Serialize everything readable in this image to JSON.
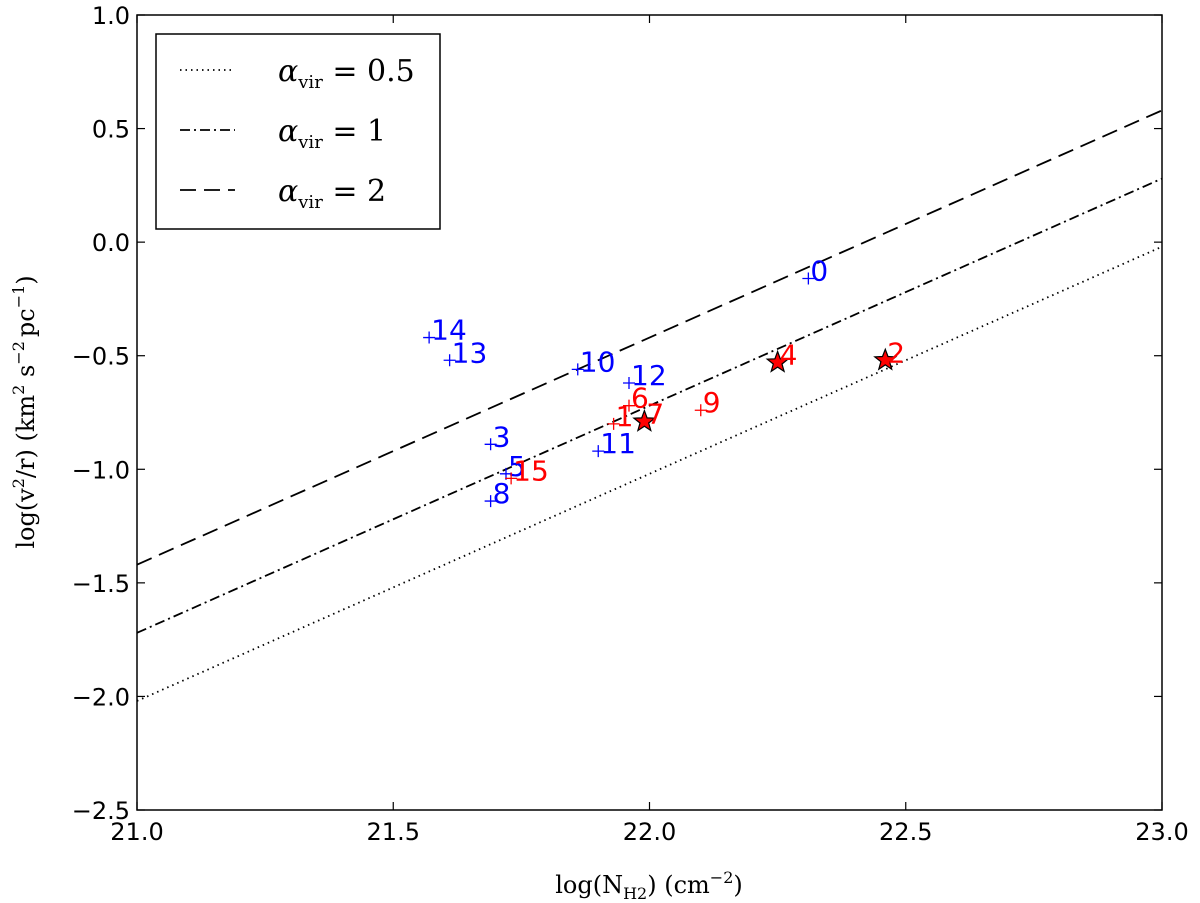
{
  "chart_data": {
    "type": "scatter",
    "xlabel": "log(N",
    "xlabel_sub": "H2",
    "xlabel_unit": ")  (cm",
    "xlabel_exp": "−2",
    "xlabel_end": ")",
    "ylabel": "log(v",
    "ylabel_sq": "2",
    "ylabel_mid": "/r)  (km",
    "ylabel_sq2": "2",
    "ylabel_s": " s",
    "ylabel_sexp": "−2",
    "ylabel_pc": "pc",
    "ylabel_pcexp": "−1",
    "ylabel_end": ")",
    "xlim": [
      21.0,
      23.0
    ],
    "ylim": [
      -2.5,
      1.0
    ],
    "xticks": [
      "21.0",
      "21.5",
      "22.0",
      "22.5",
      "23.0"
    ],
    "yticks": [
      "1.0",
      "0.5",
      "0.0",
      "−0.5",
      "−1.0",
      "−1.5",
      "−2.0",
      "−2.5"
    ],
    "lines": [
      {
        "name": "α_vir = 0.5",
        "legend_alpha": "α",
        "legend_sub": "vir",
        "legend_eq": " = 0.5",
        "style": "dotted",
        "x": [
          21.0,
          23.0
        ],
        "y": [
          -2.02,
          -0.02
        ]
      },
      {
        "name": "α_vir = 1",
        "legend_alpha": "α",
        "legend_sub": "vir",
        "legend_eq": " = 1",
        "style": "dashdot",
        "x": [
          21.0,
          23.0
        ],
        "y": [
          -1.72,
          0.28
        ]
      },
      {
        "name": "α_vir = 2",
        "legend_alpha": "α",
        "legend_sub": "vir",
        "legend_eq": " = 2",
        "style": "dashed",
        "x": [
          21.0,
          23.0
        ],
        "y": [
          -1.42,
          0.58
        ]
      }
    ],
    "points": [
      {
        "label": "0",
        "x": 22.31,
        "y": -0.16,
        "color": "#0000ff",
        "star": false
      },
      {
        "label": "14",
        "x": 21.57,
        "y": -0.42,
        "color": "#0000ff",
        "star": false
      },
      {
        "label": "13",
        "x": 21.61,
        "y": -0.52,
        "color": "#0000ff",
        "star": false
      },
      {
        "label": "10",
        "x": 21.86,
        "y": -0.56,
        "color": "#0000ff",
        "star": false
      },
      {
        "label": "12",
        "x": 21.96,
        "y": -0.62,
        "color": "#0000ff",
        "star": false
      },
      {
        "label": "3",
        "x": 21.69,
        "y": -0.89,
        "color": "#0000ff",
        "star": false
      },
      {
        "label": "11",
        "x": 21.9,
        "y": -0.92,
        "color": "#0000ff",
        "star": false
      },
      {
        "label": "5",
        "x": 21.72,
        "y": -1.02,
        "color": "#0000ff",
        "star": false
      },
      {
        "label": "8",
        "x": 21.69,
        "y": -1.14,
        "color": "#0000ff",
        "star": false
      },
      {
        "label": "4",
        "x": 22.25,
        "y": -0.53,
        "color": "#ff0000",
        "star": true
      },
      {
        "label": "2",
        "x": 22.46,
        "y": -0.52,
        "color": "#ff0000",
        "star": true
      },
      {
        "label": "7",
        "x": 21.99,
        "y": -0.79,
        "color": "#ff0000",
        "star": true
      },
      {
        "label": "6",
        "x": 21.96,
        "y": -0.72,
        "color": "#ff0000",
        "star": false
      },
      {
        "label": "1",
        "x": 21.93,
        "y": -0.8,
        "color": "#ff0000",
        "star": false
      },
      {
        "label": "9",
        "x": 22.1,
        "y": -0.74,
        "color": "#ff0000",
        "star": false
      },
      {
        "label": "15",
        "x": 21.73,
        "y": -1.04,
        "color": "#ff0000",
        "star": false
      }
    ],
    "legend_position": "upper-left",
    "grid": false
  }
}
